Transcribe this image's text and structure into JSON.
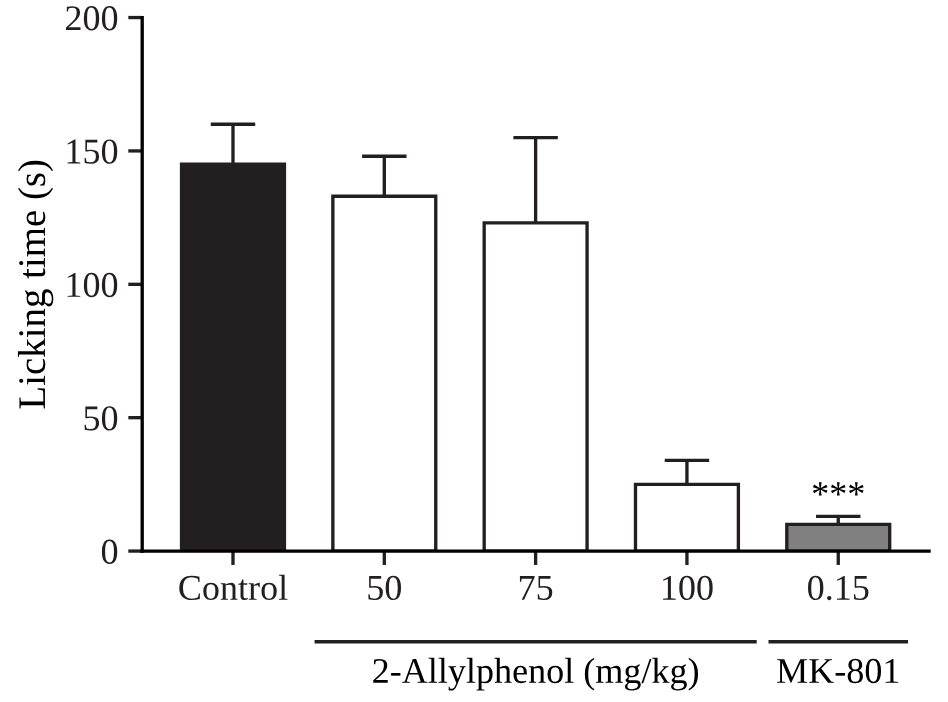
{
  "chart_data": {
    "type": "bar",
    "ylabel": "Licking time (s)",
    "categories": [
      "Control",
      "50",
      "75",
      "100",
      "0.15"
    ],
    "values": [
      145,
      133,
      123,
      25,
      10
    ],
    "errors": [
      15,
      15,
      32,
      9,
      3
    ],
    "colors": [
      "#231f20",
      "#ffffff",
      "#ffffff",
      "#ffffff",
      "#808080"
    ],
    "ylim": [
      0,
      200
    ],
    "yticks": [
      0,
      50,
      100,
      150,
      200
    ],
    "grid": false,
    "legend": false,
    "annotations": [
      {
        "text": "***",
        "x": "0.15",
        "y": 13
      },
      "2-Allylphenol (mg/kg)",
      "MK-801"
    ]
  }
}
